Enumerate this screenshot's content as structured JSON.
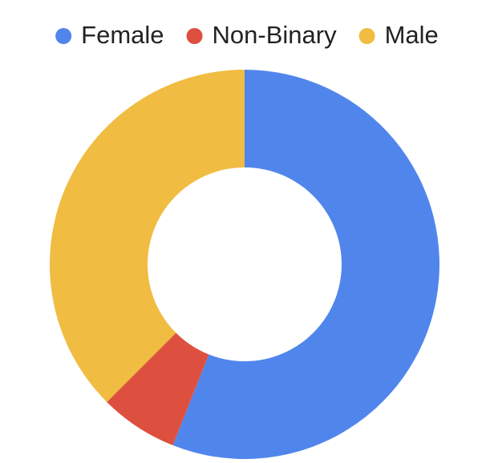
{
  "chart_data": {
    "type": "donut",
    "categories": [
      "Female",
      "Non-Binary",
      "Male"
    ],
    "values": [
      56,
      6.5,
      37.5
    ],
    "colors": [
      "#5086ec",
      "#dd5040",
      "#f0bc41"
    ]
  }
}
